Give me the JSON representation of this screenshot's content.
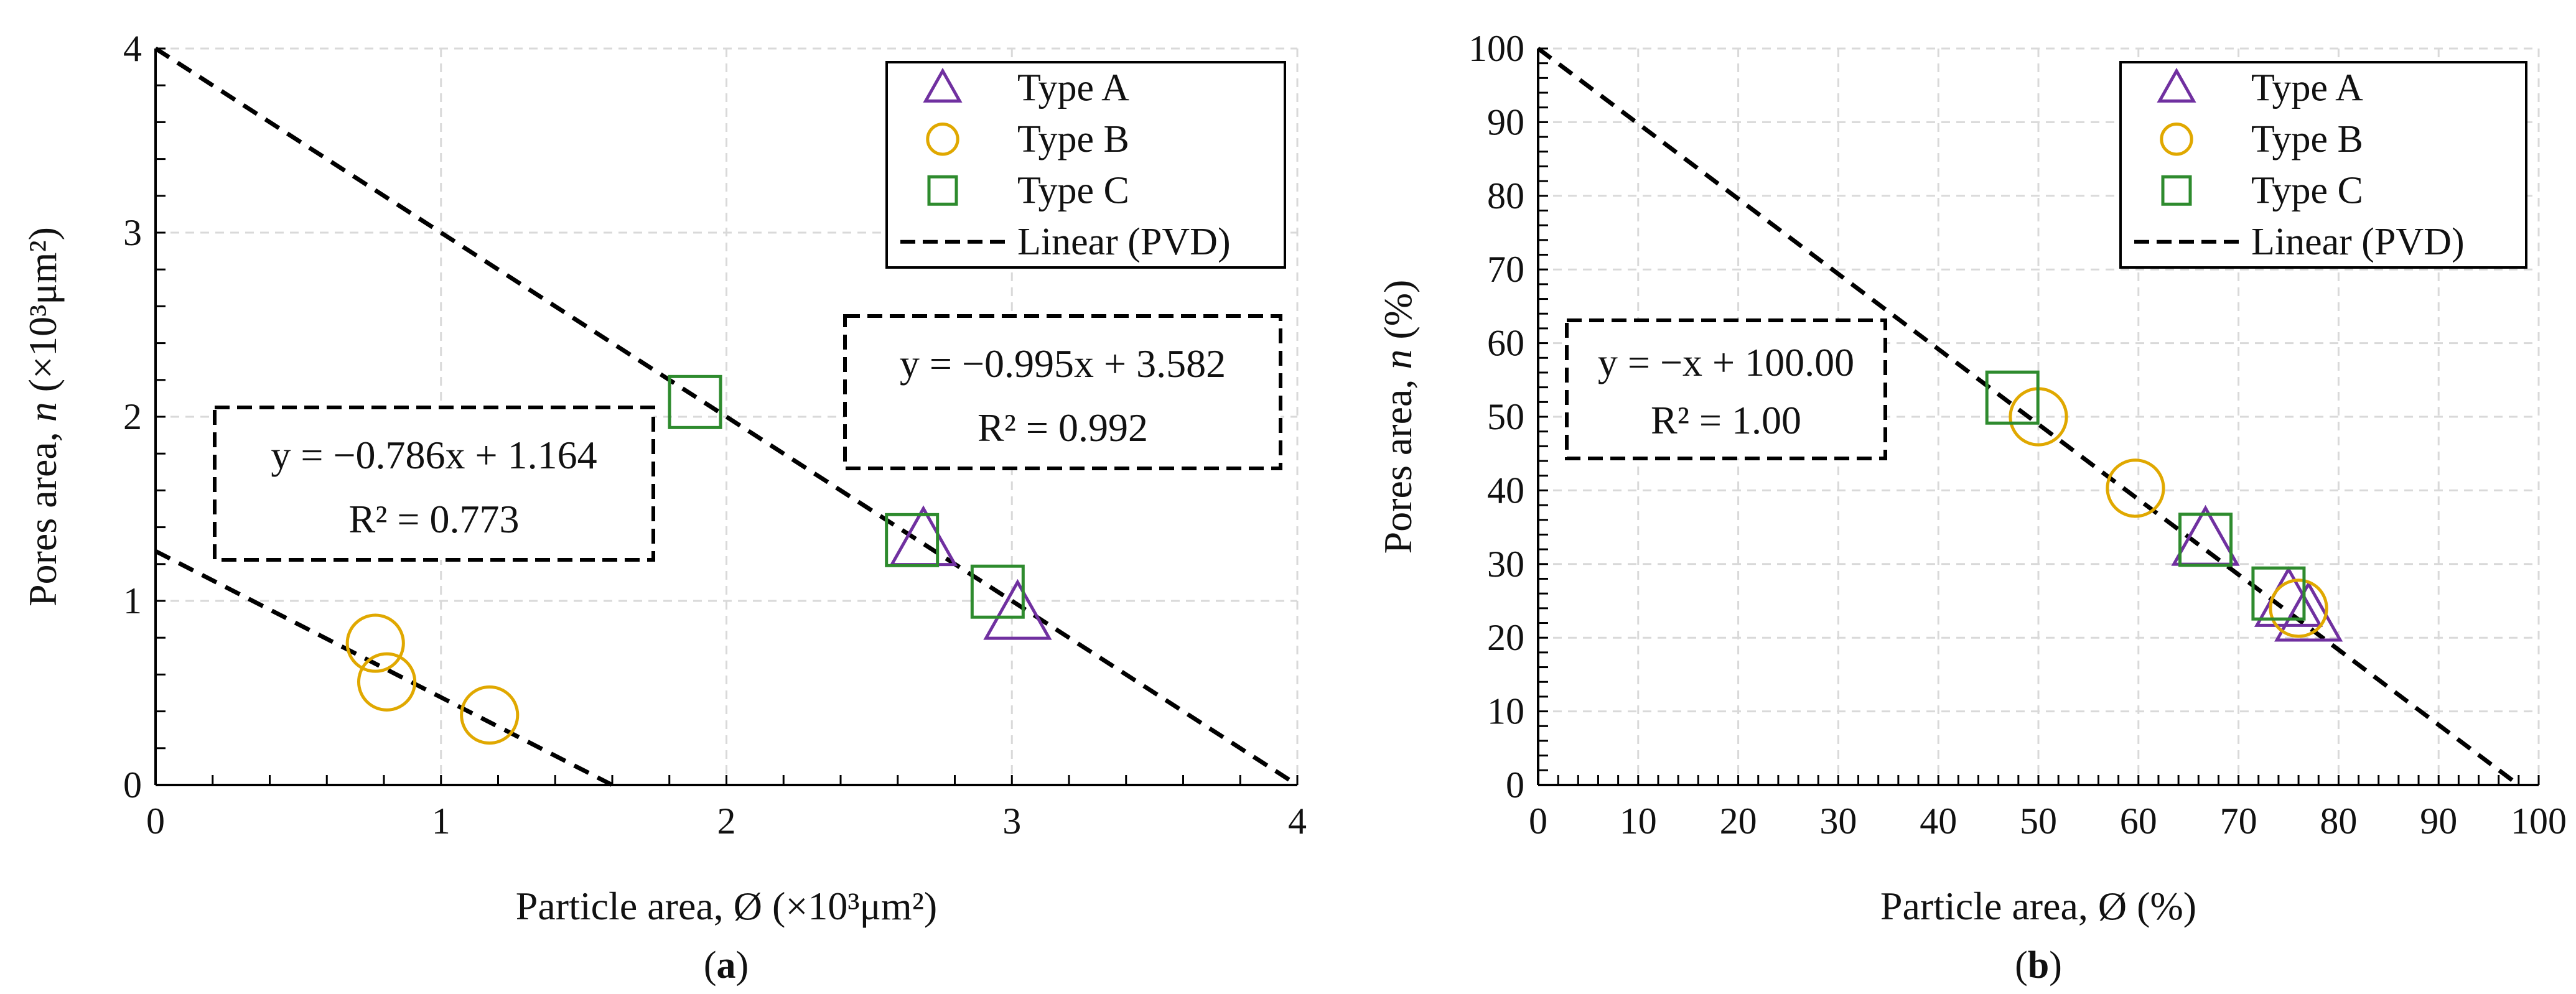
{
  "chart_data": [
    {
      "type": "scatter",
      "panel_label": "a",
      "xlabel_prefix": "Particle area, ",
      "xlabel_symbol": "Ø",
      "xlabel_unit": " (×10³μm²)",
      "ylabel_prefix": "Pores area, ",
      "ylabel_symbol": "n",
      "ylabel_unit": " (×10³μm²)",
      "xlim": [
        0,
        4
      ],
      "ylim": [
        0,
        4
      ],
      "xticks": [
        0,
        1,
        2,
        3,
        4
      ],
      "yticks": [
        0,
        1,
        2,
        3,
        4
      ],
      "grid": true,
      "legend_position": "top-right",
      "legend": [
        "Type A",
        "Type B",
        "Type C",
        "Linear (PVD)"
      ],
      "series": [
        {
          "name": "Type A",
          "marker": "triangle",
          "color": "#7030A0",
          "points": [
            [
              2.69,
              1.33
            ],
            [
              3.02,
              0.93
            ]
          ]
        },
        {
          "name": "Type B",
          "marker": "circle",
          "color": "#E0A800",
          "points": [
            [
              0.77,
              0.77
            ],
            [
              0.81,
              0.56
            ],
            [
              1.17,
              0.38
            ]
          ]
        },
        {
          "name": "Type C",
          "marker": "square",
          "color": "#2E8B2E",
          "points": [
            [
              1.89,
              2.08
            ],
            [
              2.65,
              1.33
            ],
            [
              2.95,
              1.05
            ]
          ]
        }
      ],
      "fits": [
        {
          "name": "Linear (PVD)",
          "slope": -0.995,
          "intercept": 3.582,
          "x_range": [
            0,
            4
          ],
          "label_line1": "y = −0.995x + 3.582",
          "label_line2": "R² = 0.992"
        },
        {
          "name": "Linear (PVD)",
          "slope": -0.786,
          "intercept": 1.164,
          "x_range": [
            0,
            1.6
          ],
          "label_line1": "y = −0.786x + 1.164",
          "label_line2": "R² = 0.773"
        }
      ],
      "reference_line": {
        "from": [
          0,
          4
        ],
        "to": [
          4,
          0
        ]
      }
    },
    {
      "type": "scatter",
      "panel_label": "b",
      "xlabel_prefix": "Particle area, ",
      "xlabel_symbol": "Ø",
      "xlabel_unit": " (%)",
      "ylabel_prefix": "Pores area, ",
      "ylabel_symbol": "n",
      "ylabel_unit": " (%)",
      "xlim": [
        0,
        100
      ],
      "ylim": [
        0,
        100
      ],
      "xticks": [
        0,
        10,
        20,
        30,
        40,
        50,
        60,
        70,
        80,
        90,
        100
      ],
      "yticks": [
        0,
        10,
        20,
        30,
        40,
        50,
        60,
        70,
        80,
        90,
        100
      ],
      "grid": true,
      "legend_position": "top-right",
      "legend": [
        "Type A",
        "Type B",
        "Type C",
        "Linear (PVD)"
      ],
      "series": [
        {
          "name": "Type A",
          "marker": "triangle",
          "color": "#7030A0",
          "points": [
            [
              66.7,
              33.3
            ],
            [
              75,
              25
            ],
            [
              77,
              23
            ]
          ]
        },
        {
          "name": "Type B",
          "marker": "circle",
          "color": "#E0A800",
          "points": [
            [
              50,
              50
            ],
            [
              59.7,
              40.3
            ],
            [
              76,
              24
            ]
          ]
        },
        {
          "name": "Type C",
          "marker": "square",
          "color": "#2E8B2E",
          "points": [
            [
              47.4,
              52.6
            ],
            [
              66.7,
              33.3
            ],
            [
              74,
              26
            ]
          ]
        }
      ],
      "fits": [
        {
          "name": "Linear (PVD)",
          "slope": -1,
          "intercept": 100,
          "x_range": [
            0,
            98
          ],
          "label_line1": "y = −x + 100.00",
          "label_line2": "R² = 1.00"
        }
      ]
    }
  ]
}
